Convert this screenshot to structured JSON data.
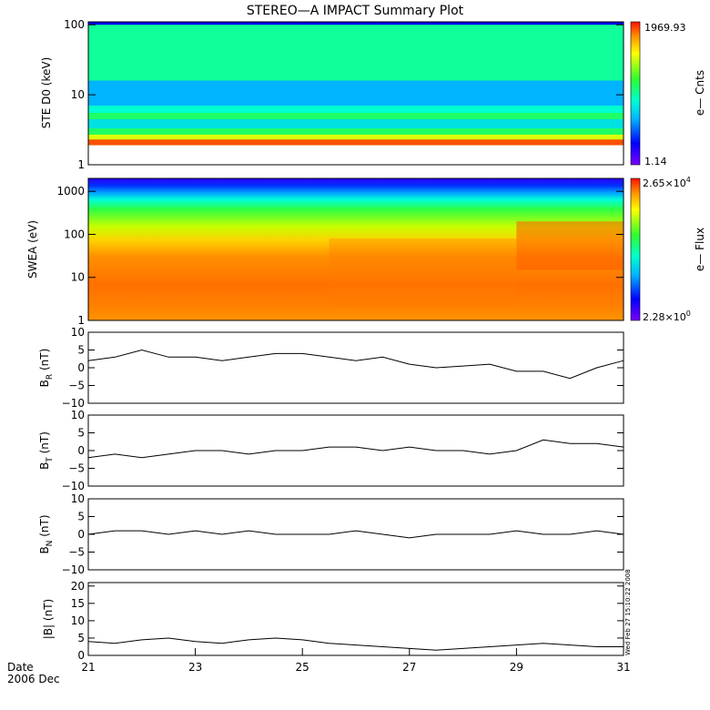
{
  "title": "STEREO—A IMPACT Summary Plot",
  "footer": {
    "date_label": "Date",
    "date_value": "2006 Dec"
  },
  "stamp": "Wed Feb 27 15:10:22 2008",
  "colors": {
    "line": "#000000",
    "frame": "#000000"
  },
  "chart_data": [
    {
      "type": "heatmap",
      "ylabel": "STE D0 (keV)",
      "yscale": "log",
      "ylim": [
        1,
        110
      ],
      "yticks": [
        "1",
        "10",
        "100"
      ],
      "xlim": [
        21,
        31
      ],
      "xticks": [
        "21",
        "23",
        "25",
        "27",
        "29",
        "31"
      ],
      "colorbar": {
        "label": "e— Cnts",
        "max": "1969.93",
        "min": "1.14"
      },
      "description_bands_keV": [
        [
          1.9,
          2.3,
          0.95
        ],
        [
          2.3,
          2.7,
          0.75
        ],
        [
          2.7,
          3.3,
          0.55
        ],
        [
          3.3,
          4.5,
          0.4
        ],
        [
          4.5,
          5.5,
          0.55
        ],
        [
          5.5,
          7.0,
          0.45
        ],
        [
          7.0,
          16,
          0.32
        ],
        [
          16,
          100,
          0.5
        ]
      ]
    },
    {
      "type": "heatmap",
      "ylabel": "SWEA (eV)",
      "yscale": "log",
      "ylim": [
        1,
        2000
      ],
      "yticks": [
        "1",
        "10",
        "100",
        "1000"
      ],
      "xlim": [
        21,
        31
      ],
      "colorbar": {
        "label": "e— Flux",
        "max_mantissa": "2.65×10",
        "max_exp": "4",
        "min_mantissa": "2.28×10",
        "min_exp": "0"
      }
    },
    {
      "type": "line",
      "ylabel_main": "B",
      "ylabel_sub": "R",
      "ylabel_unit": " (nT)",
      "ylim": [
        -10,
        10
      ],
      "yticks": [
        "10",
        "5",
        "0",
        "−5",
        "−10"
      ],
      "x": [
        21,
        21.5,
        22,
        22.5,
        23,
        23.5,
        24,
        24.5,
        25,
        25.5,
        26,
        26.5,
        27,
        27.5,
        28,
        28.5,
        29,
        29.5,
        30,
        30.5,
        31
      ],
      "y": [
        2,
        3,
        5,
        3,
        3,
        2,
        3,
        4,
        4,
        3,
        2,
        3,
        1,
        0,
        0.5,
        1,
        -1,
        -1,
        -3,
        0,
        2
      ]
    },
    {
      "type": "line",
      "ylabel_main": "B",
      "ylabel_sub": "T",
      "ylabel_unit": " (nT)",
      "ylim": [
        -10,
        10
      ],
      "yticks": [
        "10",
        "5",
        "0",
        "−5",
        "−10"
      ],
      "x": [
        21,
        21.5,
        22,
        22.5,
        23,
        23.5,
        24,
        24.5,
        25,
        25.5,
        26,
        26.5,
        27,
        27.5,
        28,
        28.5,
        29,
        29.5,
        30,
        30.5,
        31
      ],
      "y": [
        -2,
        -1,
        -2,
        -1,
        0,
        0,
        -1,
        0,
        0,
        1,
        1,
        0,
        1,
        0,
        0,
        -1,
        0,
        3,
        2,
        2,
        1
      ]
    },
    {
      "type": "line",
      "ylabel_main": "B",
      "ylabel_sub": "N",
      "ylabel_unit": " (nT)",
      "ylim": [
        -10,
        10
      ],
      "yticks": [
        "10",
        "5",
        "0",
        "−5",
        "−10"
      ],
      "x": [
        21,
        21.5,
        22,
        22.5,
        23,
        23.5,
        24,
        24.5,
        25,
        25.5,
        26,
        26.5,
        27,
        27.5,
        28,
        28.5,
        29,
        29.5,
        30,
        30.5,
        31
      ],
      "y": [
        0,
        1,
        1,
        0,
        1,
        0,
        1,
        0,
        0,
        0,
        1,
        0,
        -1,
        0,
        0,
        0,
        1,
        0,
        0,
        1,
        0
      ]
    },
    {
      "type": "line",
      "ylabel": "|B| (nT)",
      "ylim": [
        0,
        21
      ],
      "yticks": [
        "20",
        "15",
        "10",
        "5",
        "0"
      ],
      "x": [
        21,
        21.5,
        22,
        22.5,
        23,
        23.5,
        24,
        24.5,
        25,
        25.5,
        26,
        26.5,
        27,
        27.5,
        28,
        28.5,
        29,
        29.5,
        30,
        30.5,
        31
      ],
      "y": [
        4,
        3.5,
        4.5,
        5,
        4,
        3.5,
        4.5,
        5,
        4.5,
        3.5,
        3,
        2.5,
        2,
        1.5,
        2,
        2.5,
        3,
        3.5,
        3,
        2.5,
        2.5
      ]
    }
  ]
}
